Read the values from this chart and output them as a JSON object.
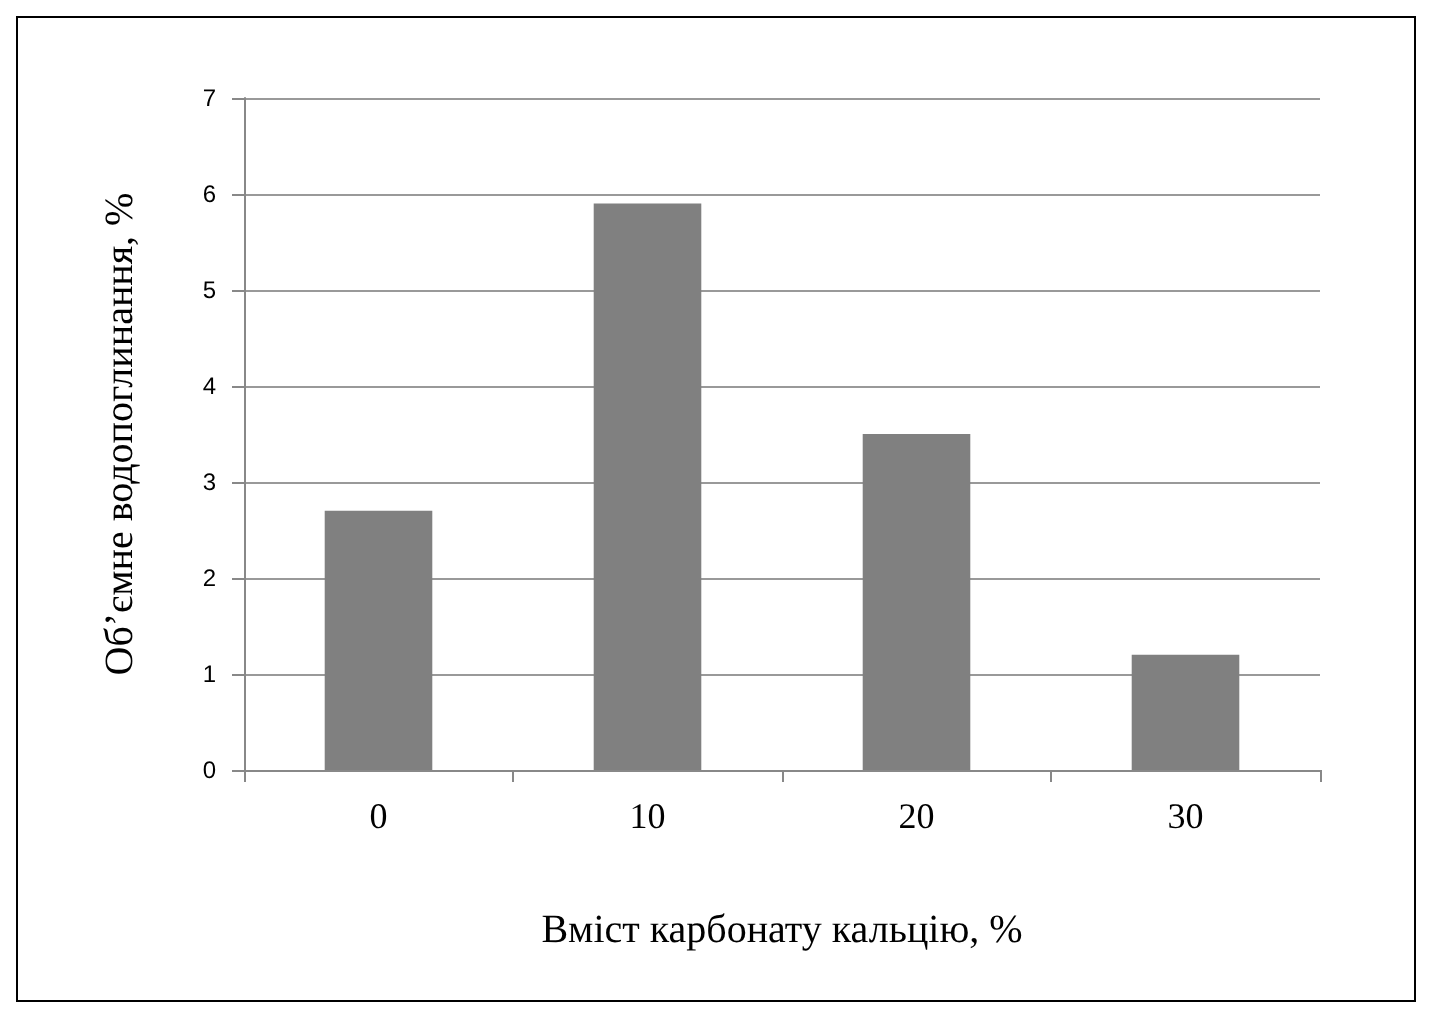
{
  "chart_data": {
    "type": "bar",
    "xlabel": "Вміст карбонату кальцію, %",
    "ylabel": "Об’ємне водопоглинання, %",
    "categories": [
      "0",
      "10",
      "20",
      "30"
    ],
    "values": [
      2.7,
      5.9,
      3.5,
      1.2
    ],
    "color": "#808080",
    "ylim": [
      0,
      7
    ],
    "yticks": [
      0,
      1,
      2,
      3,
      4,
      5,
      6,
      7
    ],
    "grid": "y"
  }
}
